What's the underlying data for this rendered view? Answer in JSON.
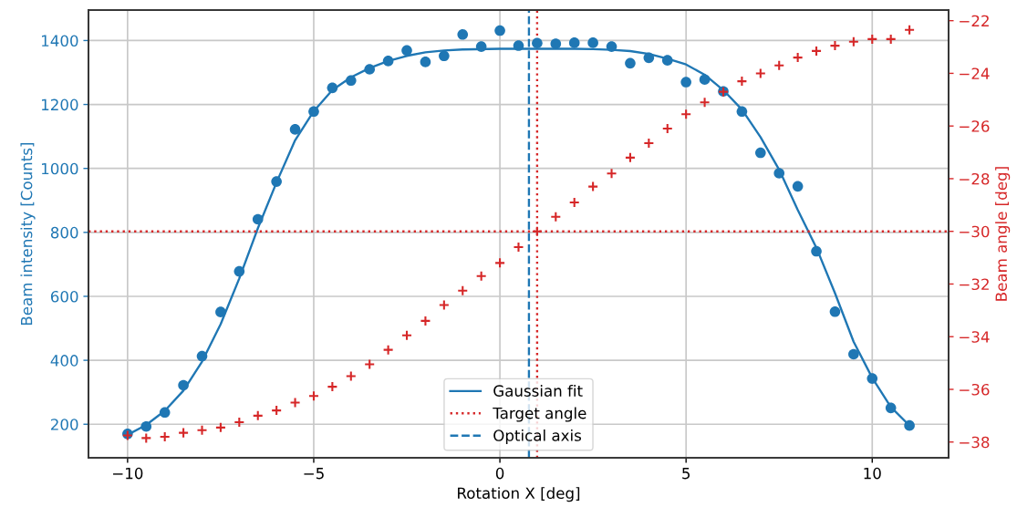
{
  "chart_data": {
    "type": "scatter",
    "xlabel": "Rotation X [deg]",
    "ylabel": "Beam intensity [Counts]",
    "y2label": "Beam angle [deg]",
    "xlim": [
      -11.05,
      12.05
    ],
    "xticks": [
      {
        "value": -10,
        "label": "−10"
      },
      {
        "value": -5,
        "label": "−5"
      },
      0,
      5,
      10
    ],
    "ylim": [
      95,
      1495
    ],
    "yticks": [
      200,
      400,
      600,
      800,
      1000,
      1200,
      1400
    ],
    "y2lim": [
      -38.6,
      -21.6
    ],
    "y2ticks": [
      {
        "value": -38,
        "label": "−38"
      },
      {
        "value": -36,
        "label": "−36"
      },
      {
        "value": -34,
        "label": "−34"
      },
      {
        "value": -32,
        "label": "−32"
      },
      {
        "value": -30,
        "label": "−30"
      },
      {
        "value": -28,
        "label": "−28"
      },
      {
        "value": -26,
        "label": "−26"
      },
      {
        "value": -24,
        "label": "−24"
      },
      {
        "value": -22,
        "label": "−22"
      }
    ],
    "grid": true,
    "legend": "bottom",
    "x": [
      -10,
      -9.5,
      -9,
      -8.5,
      -8,
      -7.5,
      -7,
      -6.5,
      -6,
      -5.5,
      -5,
      -4.5,
      -4,
      -3.5,
      -3,
      -2.5,
      -2,
      -1.5,
      -1,
      -0.5,
      0,
      0.5,
      1,
      1.5,
      2,
      2.5,
      3,
      3.5,
      4,
      4.5,
      5,
      5.5,
      6,
      6.5,
      7,
      7.5,
      8,
      8.5,
      9,
      9.5,
      10,
      10.5,
      11
    ],
    "series": [
      {
        "color": "#1f77b4",
        "marker": "circle",
        "values": [
          170,
          193,
          237,
          322,
          413,
          551,
          678,
          841,
          959,
          1122,
          1178,
          1252,
          1275,
          1310,
          1336,
          1369,
          1333,
          1352,
          1419,
          1381,
          1431,
          1384,
          1392,
          1390,
          1393,
          1393,
          1381,
          1329,
          1346,
          1338,
          1270,
          1278,
          1241,
          1178,
          1049,
          985,
          944,
          741,
          552,
          419,
          343,
          251,
          196
        ]
      },
      {
        "type": "line",
        "name": "Gaussian fit",
        "color": "#1f77b4",
        "line_style": "solid",
        "x": [
          -10,
          -9.5,
          -9,
          -8.5,
          -8,
          -7.5,
          -7,
          -6.5,
          -6,
          -5.5,
          -5,
          -4.5,
          -4,
          -3.5,
          -3,
          -2.5,
          -2,
          -1.5,
          -1,
          0,
          1,
          2,
          2.5,
          3,
          3.5,
          4,
          4.5,
          5,
          5.5,
          6,
          6.5,
          7,
          7.5,
          8,
          8.5,
          9,
          9.5,
          10,
          10.5,
          11
        ],
        "values": [
          167,
          198,
          242,
          305,
          396,
          513,
          656,
          813,
          956,
          1088,
          1179,
          1245,
          1285,
          1314,
          1336,
          1352,
          1363,
          1369,
          1372,
          1374,
          1374,
          1374,
          1373,
          1371,
          1367,
          1358,
          1343,
          1325,
          1293,
          1245,
          1184,
          1098,
          996,
          870,
          752,
          610,
          458,
          345,
          254,
          196
        ]
      },
      {
        "axis": "y2",
        "color": "#d62728",
        "marker": "cross",
        "values": [
          -37.75,
          -37.85,
          -37.8,
          -37.65,
          -37.55,
          -37.45,
          -37.25,
          -37.0,
          -36.8,
          -36.5,
          -36.25,
          -35.9,
          -35.5,
          -35.05,
          -34.5,
          -33.95,
          -33.4,
          -32.8,
          -32.25,
          -31.7,
          -31.2,
          -30.6,
          -30.0,
          -29.45,
          -28.9,
          -28.3,
          -27.8,
          -27.2,
          -26.65,
          -26.1,
          -25.55,
          -25.1,
          -24.7,
          -24.3,
          -24.0,
          -23.7,
          -23.4,
          -23.15,
          -22.95,
          -22.8,
          -22.7,
          -22.7,
          -22.35
        ]
      }
    ],
    "ref_lines": [
      {
        "axis": "x",
        "value": 1.0,
        "label": "Target angle",
        "color": "#d62728",
        "line_style": "dotted"
      },
      {
        "axis": "y2",
        "value": -30,
        "color": "#d62728",
        "line_style": "dotted"
      },
      {
        "axis": "x",
        "value": 0.78,
        "label": "Optical axis",
        "color": "#1f77b4",
        "line_style": "dashed"
      }
    ]
  }
}
